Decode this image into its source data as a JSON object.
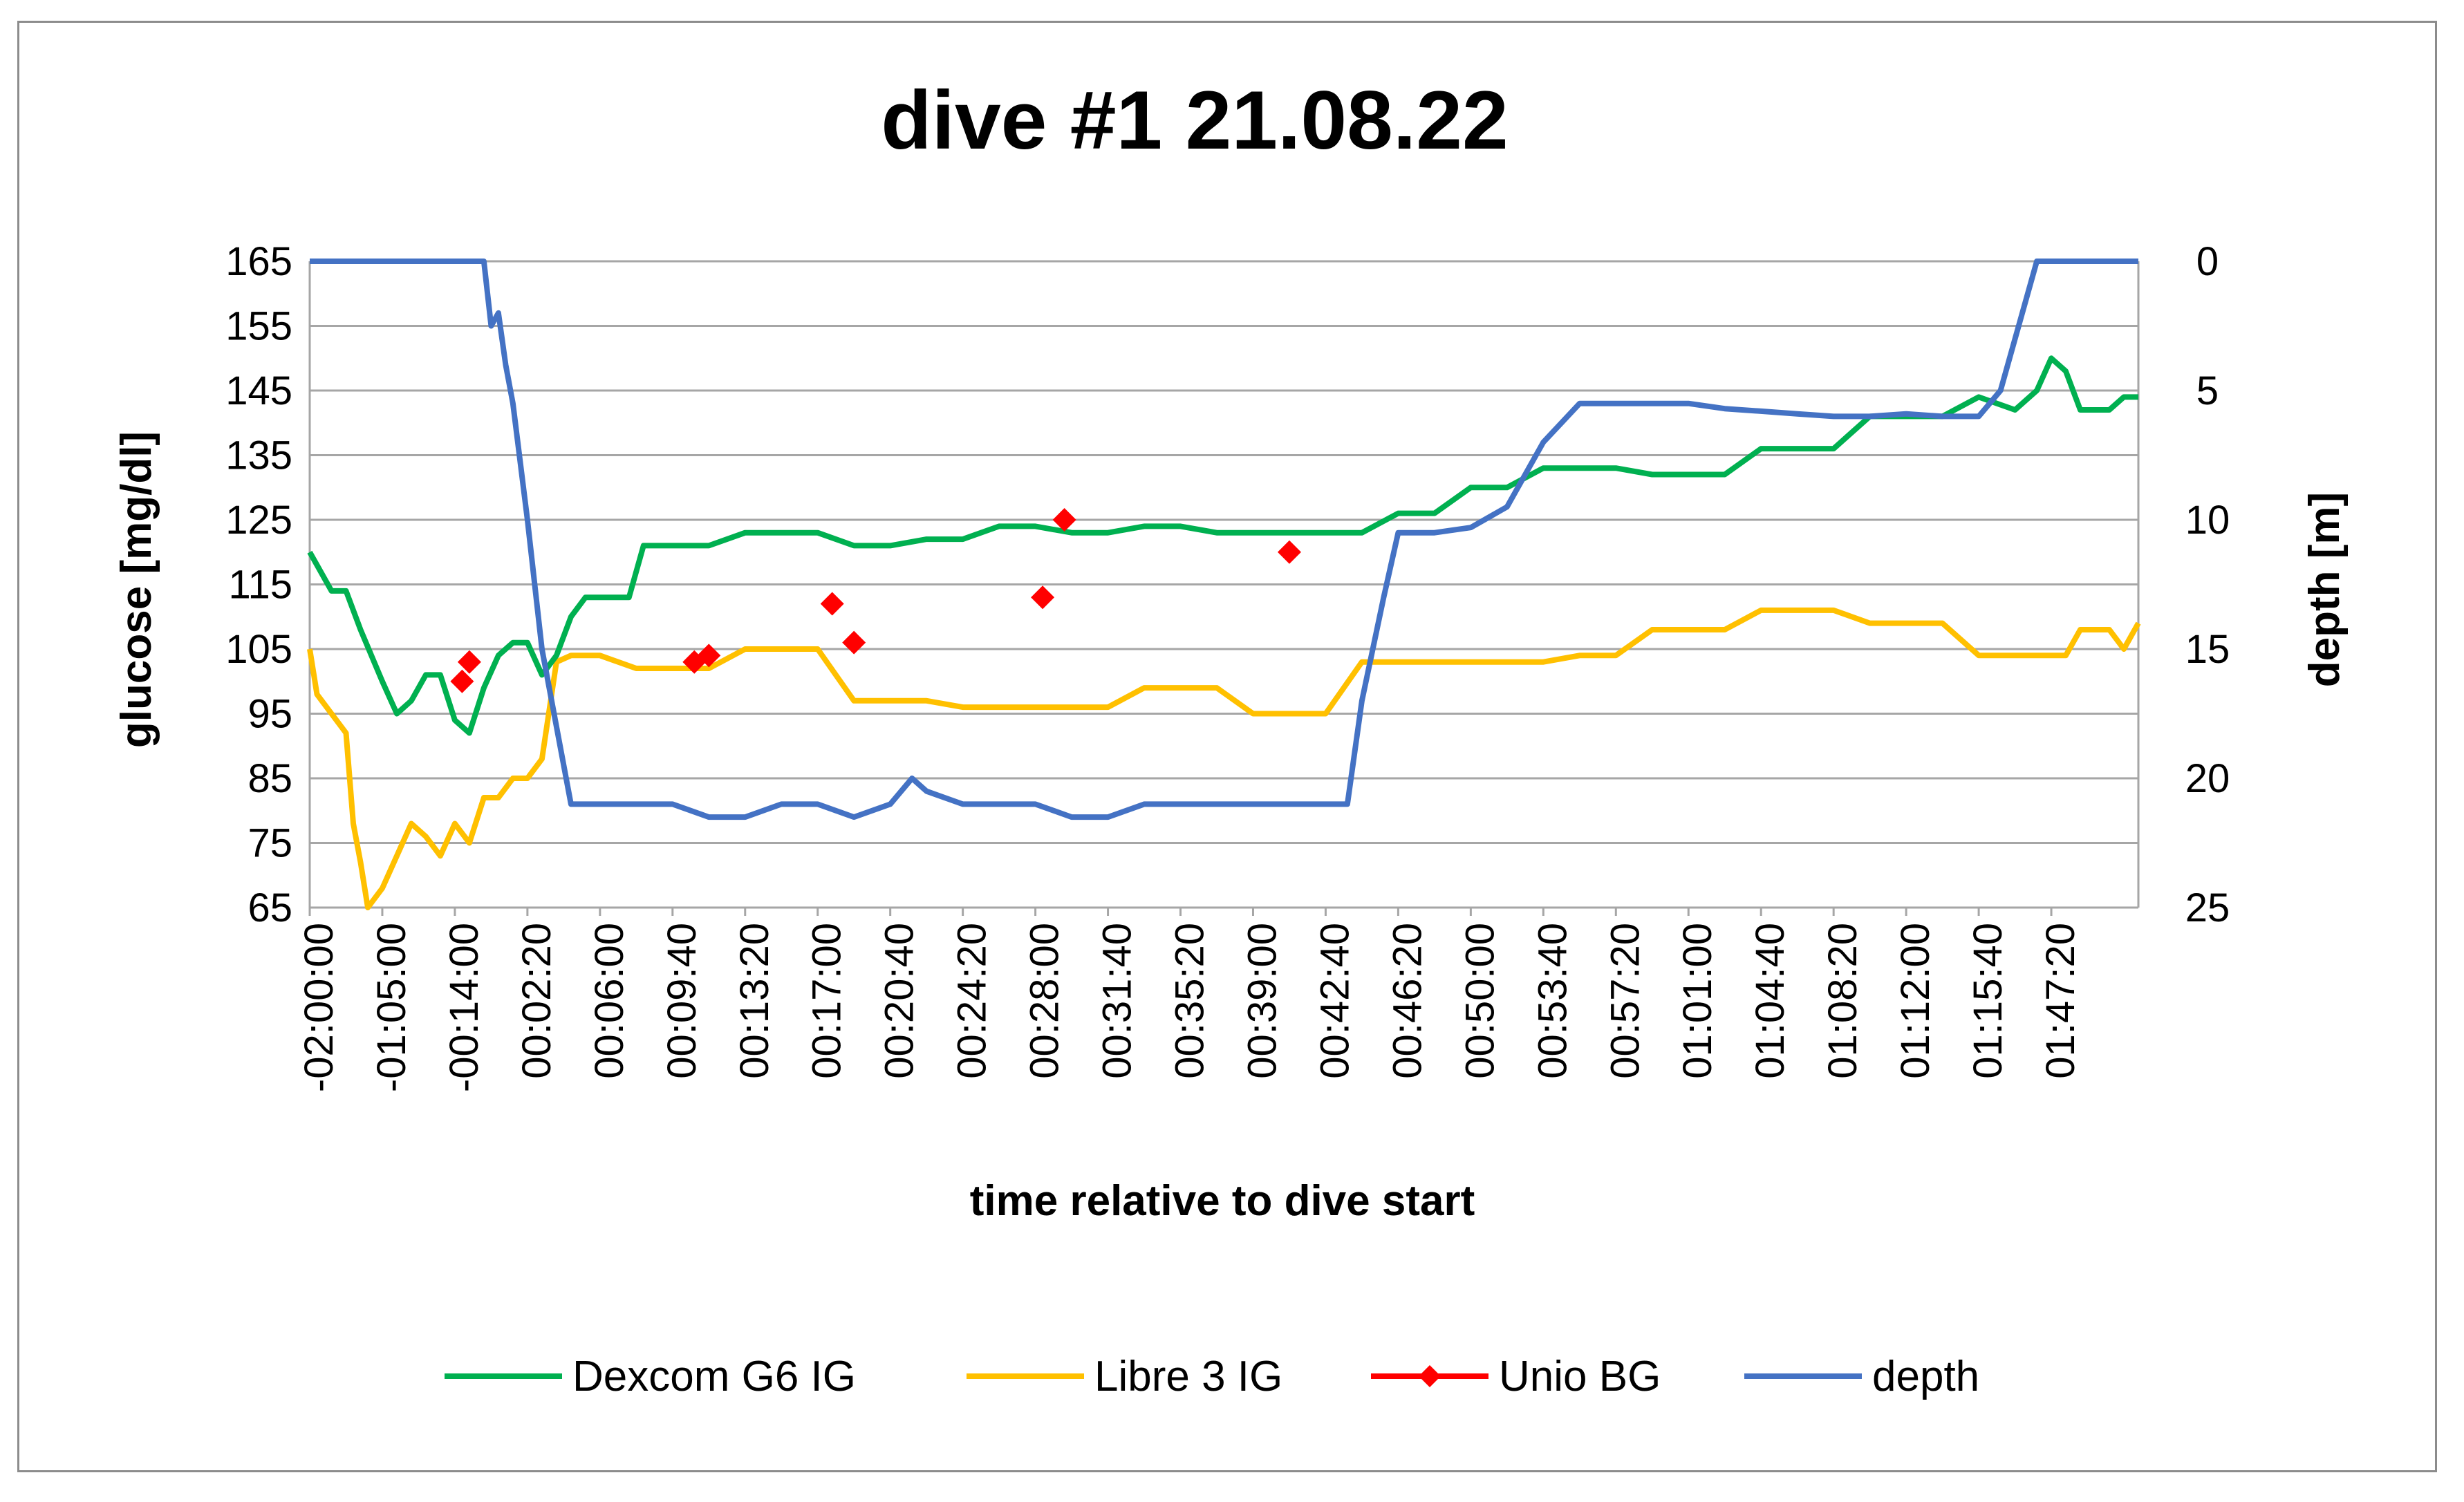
{
  "chart_data": {
    "type": "line",
    "title": "dive #1 21.08.22",
    "xlabel": "time relative to dive start",
    "ylabel": "glucose [mg/dl]",
    "y2label": "depth [m]",
    "ylim": [
      65,
      165
    ],
    "y2lim": [
      0,
      25
    ],
    "y2_reversed": true,
    "yticks": [
      "165",
      "155",
      "145",
      "135",
      "125",
      "115",
      "105",
      "95",
      "85",
      "75",
      "65"
    ],
    "y2ticks": [
      "0",
      "5",
      "10",
      "15",
      "20",
      "25"
    ],
    "x_tick_labels": [
      "-02:00:00",
      "-01:05:00",
      "-00:14:00",
      "00:02:20",
      "00:06:00",
      "00:09:40",
      "00:13:20",
      "00:17:00",
      "00:20:40",
      "00:24:20",
      "00:28:00",
      "00:31:40",
      "00:35:20",
      "00:39:00",
      "00:42:40",
      "00:46:20",
      "00:50:00",
      "00:53:40",
      "00:57:20",
      "01:01:00",
      "01:04:40",
      "01:08:20",
      "01:12:00",
      "01:15:40",
      "01:47:20"
    ],
    "grid": "horizontal",
    "legend_position": "bottom",
    "series": [
      {
        "name": "Dexcom G6 IG",
        "axis": "left",
        "color": "#00b050",
        "x": [
          0,
          0.1,
          0.3,
          0.5,
          0.7,
          1.0,
          1.2,
          1.4,
          1.6,
          1.8,
          2.0,
          2.2,
          2.4,
          2.6,
          2.8,
          3.0,
          3.2,
          3.4,
          3.6,
          3.8,
          4.0,
          4.2,
          4.4,
          4.6,
          4.8,
          5.0,
          5.5,
          6.0,
          6.5,
          7.0,
          7.5,
          8.0,
          8.5,
          9.0,
          9.5,
          10.0,
          10.5,
          11.0,
          11.5,
          12.0,
          12.5,
          13.0,
          13.5,
          14.0,
          14.5,
          15.0,
          15.5,
          16.0,
          16.5,
          17.0,
          17.5,
          18.0,
          18.5,
          19.0,
          19.5,
          20.0,
          20.5,
          21.0,
          21.5,
          22.0,
          22.5,
          23.0,
          23.5,
          23.8,
          24.0,
          24.2,
          24.4,
          24.6,
          24.8,
          25.0,
          25.2
        ],
        "y": [
          120,
          118,
          114,
          114,
          108,
          100,
          95,
          97,
          101,
          101,
          94,
          92,
          99,
          104,
          106,
          106,
          101,
          104,
          110,
          113,
          113,
          113,
          113,
          121,
          121,
          121,
          121,
          123,
          123,
          123,
          121,
          121,
          122,
          122,
          124,
          124,
          123,
          123,
          124,
          124,
          123,
          123,
          123,
          123,
          123,
          126,
          126,
          130,
          130,
          133,
          133,
          133,
          132,
          132,
          132,
          136,
          136,
          136,
          141,
          141,
          141,
          144,
          142,
          145,
          150,
          148,
          142,
          142,
          142,
          144,
          144
        ]
      },
      {
        "name": "Libre 3 IG",
        "axis": "left",
        "color": "#ffc000",
        "x": [
          0,
          0.1,
          0.3,
          0.5,
          0.6,
          0.7,
          0.8,
          1.0,
          1.2,
          1.4,
          1.6,
          1.8,
          2.0,
          2.2,
          2.4,
          2.6,
          2.8,
          3.0,
          3.2,
          3.4,
          3.6,
          3.8,
          4.0,
          4.5,
          5.0,
          5.5,
          6.0,
          6.5,
          7.0,
          7.5,
          8.0,
          8.5,
          9.0,
          9.5,
          10.0,
          10.5,
          11.0,
          11.5,
          12.0,
          12.5,
          13.0,
          13.5,
          14.0,
          14.5,
          15.0,
          15.5,
          16.0,
          16.5,
          17.0,
          17.5,
          18.0,
          18.5,
          19.0,
          19.5,
          20.0,
          20.5,
          21.0,
          21.5,
          22.0,
          22.5,
          23.0,
          23.5,
          24.0,
          24.2,
          24.4,
          24.6,
          24.8,
          25.0,
          25.2
        ],
        "y": [
          105,
          98,
          95,
          92,
          78,
          72,
          65,
          68,
          73,
          78,
          76,
          73,
          78,
          75,
          82,
          82,
          85,
          85,
          88,
          103,
          104,
          104,
          104,
          102,
          102,
          102,
          105,
          105,
          105,
          97,
          97,
          97,
          96,
          96,
          96,
          96,
          96,
          99,
          99,
          99,
          95,
          95,
          95,
          103,
          103,
          103,
          103,
          103,
          103,
          104,
          104,
          108,
          108,
          108,
          111,
          111,
          111,
          109,
          109,
          109,
          104,
          104,
          104,
          104,
          108,
          108,
          108,
          105,
          109
        ]
      },
      {
        "name": "Unio BG",
        "axis": "left",
        "color": "#ff0000",
        "marker": "diamond",
        "line": false,
        "x": [
          2.1,
          2.2,
          5.3,
          5.5,
          7.2,
          7.5,
          10.1,
          10.4,
          13.5
        ],
        "y": [
          100,
          103,
          103,
          104,
          112,
          106,
          113,
          125,
          120
        ]
      },
      {
        "name": "depth",
        "axis": "right",
        "color": "#4472c4",
        "x": [
          0,
          2.4,
          2.5,
          2.6,
          2.7,
          2.8,
          3.0,
          3.2,
          3.4,
          3.6,
          3.8,
          4.0,
          4.2,
          4.4,
          4.6,
          4.8,
          5.0,
          5.5,
          6.0,
          6.5,
          7.0,
          7.5,
          8.0,
          8.3,
          8.5,
          9.0,
          9.5,
          10.0,
          10.5,
          11.0,
          11.5,
          12.0,
          12.5,
          13.0,
          13.5,
          14.0,
          14.3,
          14.5,
          14.8,
          15.0,
          15.5,
          16.0,
          16.5,
          17.0,
          17.5,
          18.0,
          18.5,
          19.0,
          19.5,
          20.0,
          20.5,
          21.0,
          21.5,
          22.0,
          22.5,
          23.0,
          23.3,
          23.6,
          23.8,
          24.0,
          24.2,
          24.4,
          25.2
        ],
        "y": [
          0,
          0,
          2.5,
          2,
          4,
          5.5,
          10,
          15,
          18,
          21,
          21,
          21,
          21,
          21,
          21,
          21,
          21,
          21.5,
          21.5,
          21,
          21,
          21.5,
          21,
          20,
          20.5,
          21,
          21,
          21,
          21.5,
          21.5,
          21,
          21,
          21,
          21,
          21,
          21,
          21,
          17,
          13,
          10.5,
          10.5,
          10.3,
          9.5,
          7,
          5.5,
          5.5,
          5.5,
          5.5,
          5.7,
          5.8,
          5.9,
          6,
          6,
          5.9,
          6,
          6,
          5,
          2,
          0,
          0,
          0,
          0,
          0
        ]
      }
    ]
  }
}
